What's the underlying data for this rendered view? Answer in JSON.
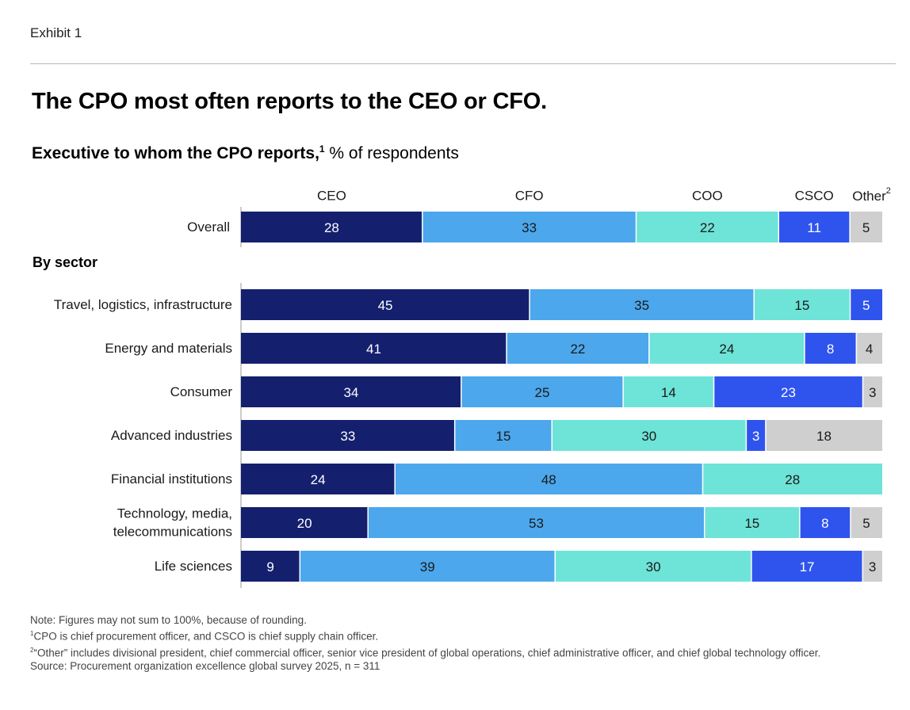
{
  "header": {
    "exhibit": "Exhibit 1",
    "title": "The CPO most often reports to the CEO or CFO.",
    "subtitle_bold": "Executive to whom the CPO reports,",
    "subtitle_sup": "1",
    "subtitle_rest": " % of respondents"
  },
  "chart_data": {
    "type": "stacked-bar-horizontal",
    "title": "Executive to whom the CPO reports, % of respondents",
    "categories_header": [
      "CEO",
      "CFO",
      "COO",
      "CSCO",
      "Other"
    ],
    "other_sup": "2",
    "colors": [
      "#14206e",
      "#4ca7ec",
      "#6ee3d8",
      "#2f54ee",
      "#cfcfcf"
    ],
    "label_colors": [
      "#ffffff",
      "#1a1a1a",
      "#1a1a1a",
      "#ffffff",
      "#1a1a1a"
    ],
    "overall": {
      "label": "Overall",
      "values": [
        28,
        33,
        22,
        11,
        5
      ]
    },
    "section_label": "By sector",
    "sectors": [
      {
        "label": [
          "Travel, logistics, infrastructure"
        ],
        "values": [
          45,
          35,
          15,
          5,
          0
        ]
      },
      {
        "label": [
          "Energy and materials"
        ],
        "values": [
          41,
          22,
          24,
          8,
          4
        ]
      },
      {
        "label": [
          "Consumer"
        ],
        "values": [
          34,
          25,
          14,
          23,
          3
        ]
      },
      {
        "label": [
          "Advanced industries"
        ],
        "values": [
          33,
          15,
          30,
          3,
          18
        ]
      },
      {
        "label": [
          "Financial institutions"
        ],
        "values": [
          24,
          48,
          28,
          0,
          0
        ]
      },
      {
        "label": [
          "Technology, media,",
          "telecommunications"
        ],
        "values": [
          20,
          53,
          15,
          8,
          5
        ]
      },
      {
        "label": [
          "Life sciences"
        ],
        "values": [
          9,
          39,
          30,
          17,
          3
        ]
      }
    ]
  },
  "notes": {
    "note": "Note: Figures may not sum to 100%, because of rounding.",
    "fn1_sup": "1",
    "fn1": "CPO is chief procurement officer, and CSCO is chief supply chain officer.",
    "fn2_sup": "2",
    "fn2": "“Other” includes divisional president, chief commercial officer, senior vice president of global operations, chief administrative officer, and chief global technology officer.",
    "source": "Source: Procurement organization excellence global survey 2025, n = 311"
  }
}
